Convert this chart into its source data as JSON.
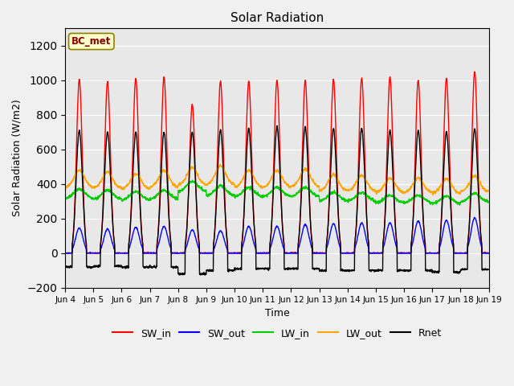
{
  "title": "Solar Radiation",
  "xlabel": "Time",
  "ylabel": "Solar Radiation (W/m2)",
  "station_label": "BC_met",
  "ylim": [
    -200,
    1300
  ],
  "yticks": [
    -200,
    0,
    200,
    400,
    600,
    800,
    1000,
    1200
  ],
  "start_day": 4,
  "end_day": 19,
  "num_days": 15,
  "points_per_day": 144,
  "colors": {
    "SW_in": "#ff0000",
    "SW_out": "#0000ff",
    "LW_in": "#00cc00",
    "LW_out": "#ffa500",
    "Rnet": "#000000"
  },
  "line_width": 1.0,
  "plot_bg_color": "#e8e8e8",
  "fig_bg_color": "#f0f0f0",
  "xtick_labels": [
    "Jun 4",
    "Jun 5",
    "Jun 6",
    "Jun 7",
    "Jun 8",
    "Jun 9",
    "Jun 10",
    "Jun 11",
    "Jun 12",
    "Jun 13",
    "Jun 14",
    "Jun 15",
    "Jun 16",
    "Jun 17",
    "Jun 18",
    "Jun 19"
  ],
  "SW_in_peaks": [
    1005,
    990,
    1010,
    1020,
    860,
    995,
    995,
    1000,
    1000,
    1005,
    1015,
    1020,
    1000,
    1010,
    1050
  ],
  "SW_out_peaks": [
    145,
    140,
    150,
    155,
    135,
    130,
    155,
    155,
    165,
    170,
    175,
    175,
    185,
    190,
    205
  ],
  "LW_in_base": [
    315,
    310,
    305,
    310,
    355,
    330,
    325,
    325,
    325,
    300,
    300,
    290,
    290,
    285,
    295
  ],
  "LW_in_peak_add": [
    55,
    55,
    50,
    55,
    60,
    60,
    55,
    55,
    55,
    50,
    50,
    45,
    45,
    45,
    50
  ],
  "LW_out_base": [
    380,
    375,
    370,
    380,
    395,
    395,
    380,
    380,
    385,
    360,
    360,
    350,
    350,
    345,
    355
  ],
  "LW_out_peak_add": [
    100,
    95,
    90,
    100,
    100,
    110,
    100,
    100,
    100,
    95,
    90,
    85,
    85,
    85,
    90
  ],
  "Rnet_peaks": [
    710,
    700,
    700,
    700,
    700,
    710,
    720,
    730,
    730,
    720,
    720,
    710,
    710,
    700,
    720
  ],
  "Rnet_night": [
    -80,
    -75,
    -80,
    -80,
    -120,
    -100,
    -90,
    -90,
    -90,
    -100,
    -100,
    -100,
    -100,
    -110,
    -95
  ]
}
